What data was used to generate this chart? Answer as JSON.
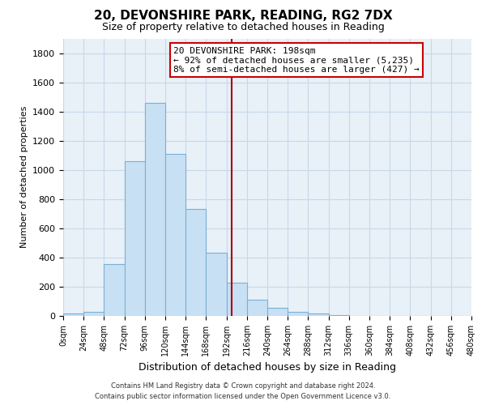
{
  "title": "20, DEVONSHIRE PARK, READING, RG2 7DX",
  "subtitle": "Size of property relative to detached houses in Reading",
  "xlabel": "Distribution of detached houses by size in Reading",
  "ylabel": "Number of detached properties",
  "bin_edges": [
    0,
    24,
    48,
    72,
    96,
    120,
    144,
    168,
    192,
    216,
    240,
    264,
    288,
    312,
    336,
    360,
    384,
    408,
    432,
    456,
    480
  ],
  "bar_heights": [
    15,
    30,
    355,
    1060,
    1460,
    1110,
    735,
    435,
    225,
    110,
    55,
    25,
    15,
    5,
    0,
    0,
    0,
    0,
    0,
    0
  ],
  "bar_color": "#c8e0f4",
  "bar_edge_color": "#7ab0d4",
  "vline_x": 198,
  "vline_color": "#aa0000",
  "annotation_title": "20 DEVONSHIRE PARK: 198sqm",
  "annotation_line1": "← 92% of detached houses are smaller (5,235)",
  "annotation_line2": "8% of semi-detached houses are larger (427) →",
  "annotation_box_color": "#ffffff",
  "annotation_box_edge": "#cc0000",
  "ylim": [
    0,
    1900
  ],
  "yticks": [
    0,
    200,
    400,
    600,
    800,
    1000,
    1200,
    1400,
    1600,
    1800
  ],
  "footer_line1": "Contains HM Land Registry data © Crown copyright and database right 2024.",
  "footer_line2": "Contains public sector information licensed under the Open Government Licence v3.0.",
  "bg_color": "#ffffff",
  "plot_bg_color": "#e8f0f8",
  "grid_color": "#c8d8e8"
}
